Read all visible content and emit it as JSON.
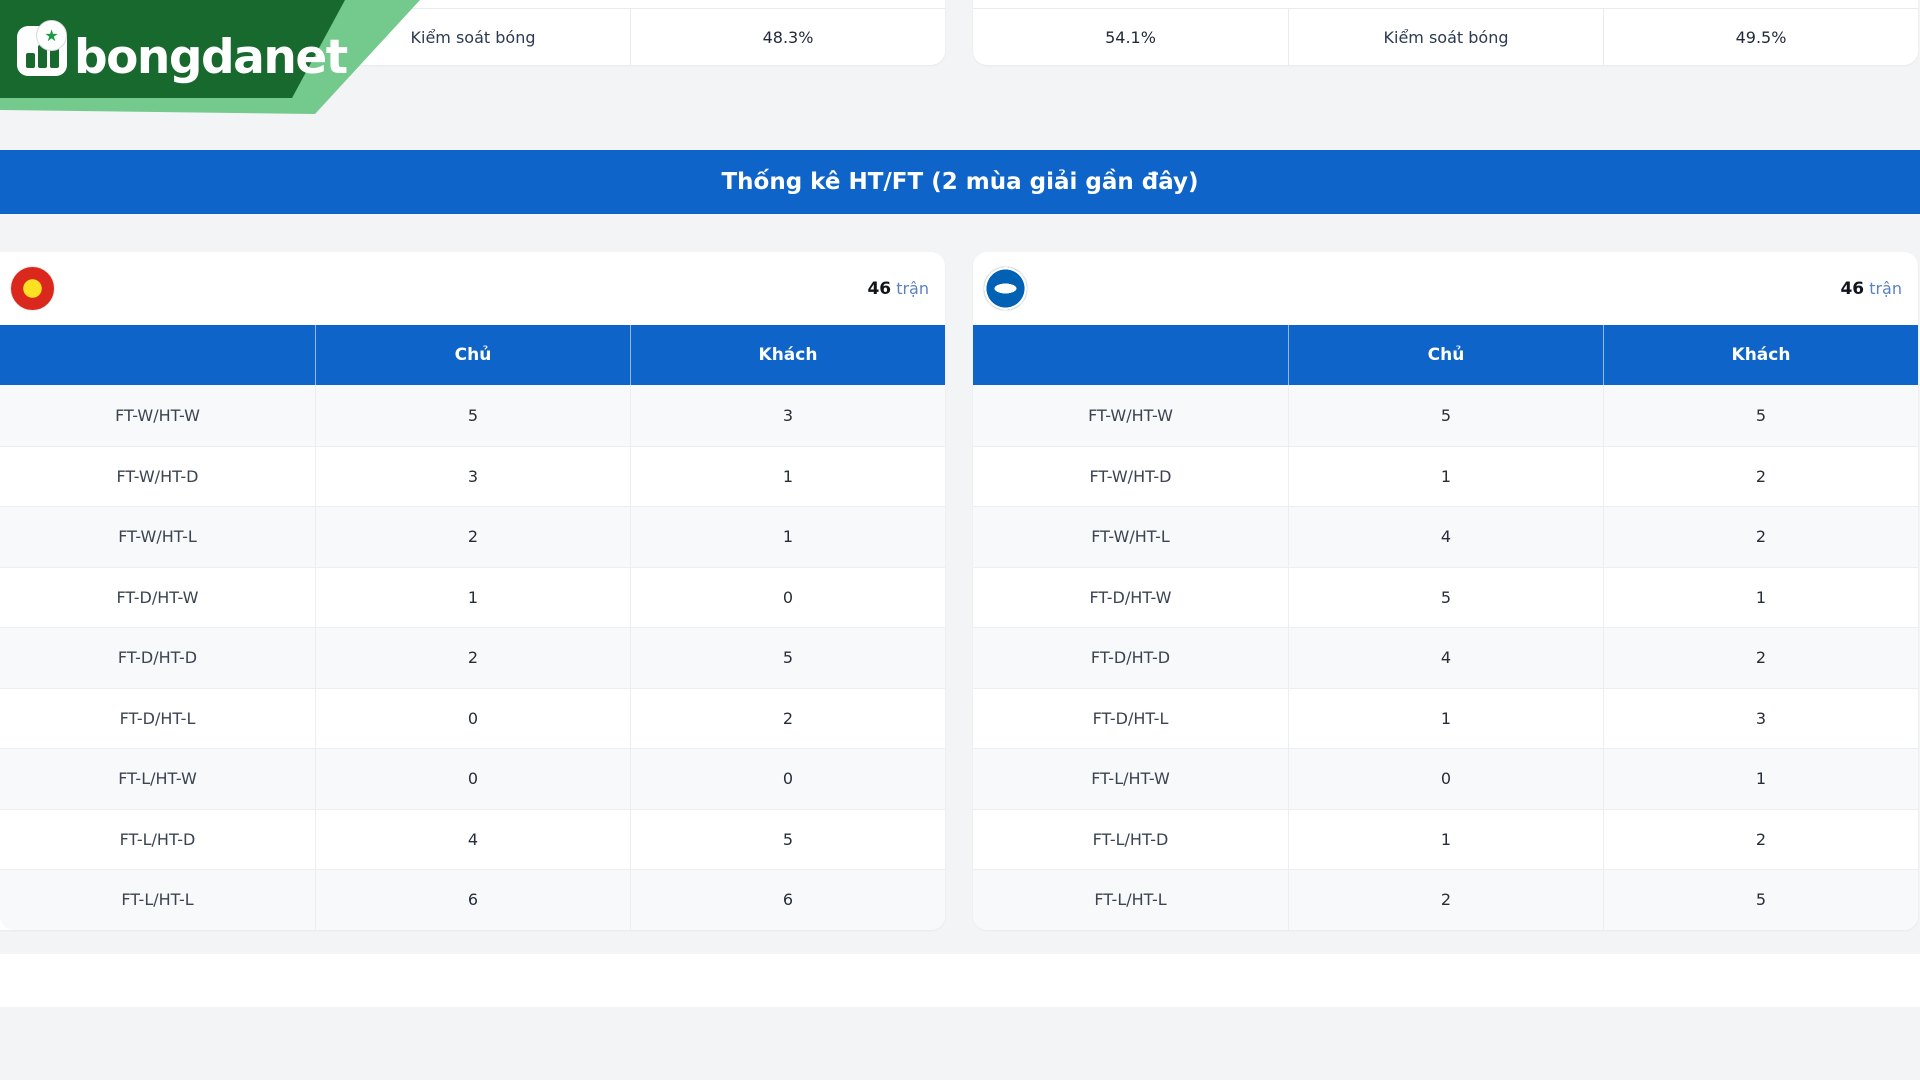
{
  "brand": {
    "name": "bongdanet",
    "icons": [
      "bar-chart-icon",
      "football-icon"
    ],
    "colors": {
      "dark_green": "#17692D",
      "light_green": "#74CA8C"
    }
  },
  "possession_section": {
    "left_table": {
      "label": "Kiểm soát bóng",
      "away_value": "48.3%"
    },
    "right_table": {
      "home_value": "54.1%",
      "label": "Kiểm soát bóng",
      "away_value": "49.5%"
    }
  },
  "banner": {
    "title": "Thống kê HT/FT (2 mùa giải gần đây)",
    "color": "#0E64C8"
  },
  "htft_section": {
    "col_home": "Chủ",
    "col_away": "Khách",
    "teams": [
      {
        "crest": "manchester-united-crest",
        "crest_colors": {
          "red": "#DA291C",
          "yellow": "#FBE122"
        },
        "matches_value": "46",
        "matches_label": "trận",
        "rows": [
          {
            "label": "FT-W/HT-W",
            "home": "5",
            "away": "3"
          },
          {
            "label": "FT-W/HT-D",
            "home": "3",
            "away": "1"
          },
          {
            "label": "FT-W/HT-L",
            "home": "2",
            "away": "1"
          },
          {
            "label": "FT-D/HT-W",
            "home": "1",
            "away": "0"
          },
          {
            "label": "FT-D/HT-D",
            "home": "2",
            "away": "5"
          },
          {
            "label": "FT-D/HT-L",
            "home": "0",
            "away": "2"
          },
          {
            "label": "FT-L/HT-W",
            "home": "0",
            "away": "0"
          },
          {
            "label": "FT-L/HT-D",
            "home": "4",
            "away": "5"
          },
          {
            "label": "FT-L/HT-L",
            "home": "6",
            "away": "6"
          }
        ]
      },
      {
        "crest": "brighton-crest",
        "crest_colors": {
          "blue": "#0061B5",
          "white": "#FFFFFF"
        },
        "matches_value": "46",
        "matches_label": "trận",
        "rows": [
          {
            "label": "FT-W/HT-W",
            "home": "5",
            "away": "5"
          },
          {
            "label": "FT-W/HT-D",
            "home": "1",
            "away": "2"
          },
          {
            "label": "FT-W/HT-L",
            "home": "4",
            "away": "2"
          },
          {
            "label": "FT-D/HT-W",
            "home": "5",
            "away": "1"
          },
          {
            "label": "FT-D/HT-D",
            "home": "4",
            "away": "2"
          },
          {
            "label": "FT-D/HT-L",
            "home": "1",
            "away": "3"
          },
          {
            "label": "FT-L/HT-W",
            "home": "0",
            "away": "1"
          },
          {
            "label": "FT-L/HT-D",
            "home": "1",
            "away": "2"
          },
          {
            "label": "FT-L/HT-L",
            "home": "2",
            "away": "5"
          }
        ]
      }
    ]
  }
}
